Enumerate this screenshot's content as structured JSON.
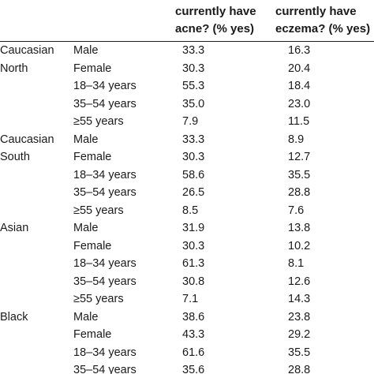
{
  "table": {
    "columns": {
      "acne": "currently have\nacne? (% yes)",
      "eczema": "currently have\neczema? (% yes)"
    },
    "rows": [
      {
        "group": "Caucasian",
        "subgroup": "Male",
        "acne": "33.3",
        "eczema": "16.3"
      },
      {
        "group": "North",
        "subgroup": "Female",
        "acne": "30.3",
        "eczema": "20.4"
      },
      {
        "group": "",
        "subgroup": "18–34 years",
        "acne": "55.3",
        "eczema": "18.4"
      },
      {
        "group": "",
        "subgroup": "35–54 years",
        "acne": "35.0",
        "eczema": "23.0"
      },
      {
        "group": "",
        "subgroup": "≥55 years",
        "acne": "7.9",
        "eczema": "11.5"
      },
      {
        "group": "Caucasian",
        "subgroup": "Male",
        "acne": "33.3",
        "eczema": "8.9"
      },
      {
        "group": "South",
        "subgroup": "Female",
        "acne": "30.3",
        "eczema": "12.7"
      },
      {
        "group": "",
        "subgroup": "18–34 years",
        "acne": "58.6",
        "eczema": "35.5"
      },
      {
        "group": "",
        "subgroup": "35–54 years",
        "acne": "26.5",
        "eczema": "28.8"
      },
      {
        "group": "",
        "subgroup": "≥55 years",
        "acne": "8.5",
        "eczema": "7.6"
      },
      {
        "group": "Asian",
        "subgroup": "Male",
        "acne": "31.9",
        "eczema": "13.8"
      },
      {
        "group": "",
        "subgroup": "Female",
        "acne": "30.3",
        "eczema": "10.2"
      },
      {
        "group": "",
        "subgroup": "18–34 years",
        "acne": "61.3",
        "eczema": "8.1"
      },
      {
        "group": "",
        "subgroup": "35–54 years",
        "acne": "30.8",
        "eczema": "12.6"
      },
      {
        "group": "",
        "subgroup": "≥55 years",
        "acne": "7.1",
        "eczema": "14.3"
      },
      {
        "group": "Black",
        "subgroup": "Male",
        "acne": "38.6",
        "eczema": "23.8"
      },
      {
        "group": "",
        "subgroup": "Female",
        "acne": "43.3",
        "eczema": "29.2"
      },
      {
        "group": "",
        "subgroup": "18–34 years",
        "acne": "61.6",
        "eczema": "35.5"
      },
      {
        "group": "",
        "subgroup": "35–54 years",
        "acne": "35.6",
        "eczema": "28.8"
      }
    ]
  }
}
